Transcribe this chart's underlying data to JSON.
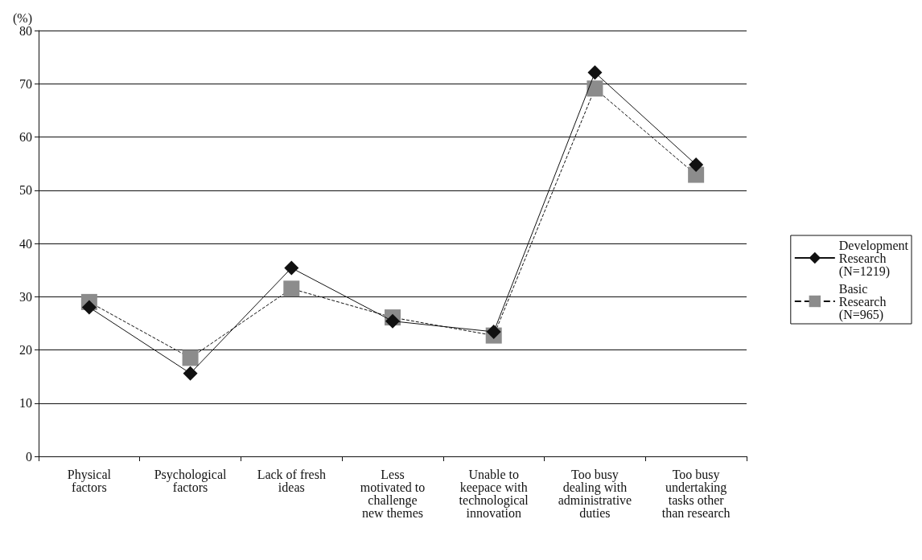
{
  "chart_data": {
    "type": "line",
    "ylabel": "(%)",
    "categories": [
      "Physical\nfactors",
      "Psychological\nfactors",
      "Lack of fresh\nideas",
      "Less\nmotivated to\nchallenge\nnew themes",
      "Unable to\nkeepace with\ntechnological\ninnovation",
      "Too busy\ndealing with\nadministrative\nduties",
      "Too busy\nundertaking\ntasks other\nthan research"
    ],
    "series": [
      {
        "name": "Development\nResearch\n(N=1219)",
        "color": "#111111",
        "marker": "diamond",
        "line_style": "solid",
        "values": [
          28,
          15.6,
          35.4,
          25.4,
          23.4,
          72.1,
          54.8
        ]
      },
      {
        "name": "Basic\nResearch\n(N=965)",
        "color": "#8c8c8c",
        "marker": "square",
        "line_style": "dashed",
        "values": [
          29,
          18.5,
          31.5,
          26.1,
          22.7,
          69.1,
          52.9
        ]
      }
    ],
    "ylim": [
      0,
      80
    ],
    "yticks": [
      0,
      10,
      20,
      30,
      40,
      50,
      60,
      70,
      80
    ],
    "grid": "y",
    "legend": "right"
  }
}
